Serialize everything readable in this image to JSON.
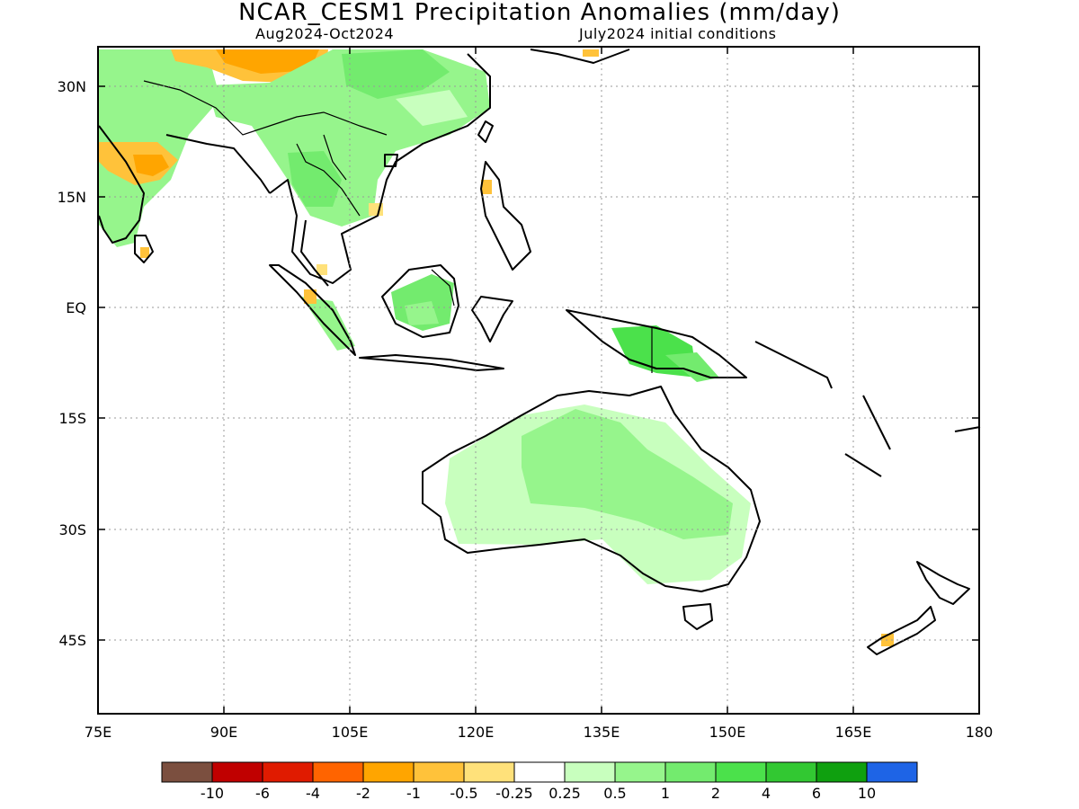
{
  "header": {
    "title": "NCAR_CESM1 Precipitation Anomalies (mm/day)",
    "period": "Aug2024-Oct2024",
    "init": "July2024 initial conditions"
  },
  "map": {
    "lat_labels": [
      "30N",
      "15N",
      "EQ",
      "15S",
      "30S",
      "45S"
    ],
    "lon_labels": [
      "75E",
      "90E",
      "105E",
      "120E",
      "135E",
      "150E",
      "165E",
      "180"
    ],
    "lon_range": [
      75,
      180
    ],
    "lat_range": [
      -55,
      35
    ],
    "gridlines": true
  },
  "colorbar": {
    "colors": [
      "#7b4f3f",
      "#c00000",
      "#e01b00",
      "#ff6400",
      "#ffa500",
      "#ffc23a",
      "#ffe17a",
      "#ffffff",
      "#c8ffbe",
      "#96f58c",
      "#73eb6e",
      "#4be14b",
      "#32c832",
      "#0fa00f",
      "#1e64e6"
    ],
    "labels": [
      "-10",
      "-6",
      "-4",
      "-2",
      "-1",
      "-0.5",
      "-0.25",
      "0.25",
      "0.5",
      "1",
      "2",
      "4",
      "6",
      "10"
    ]
  }
}
